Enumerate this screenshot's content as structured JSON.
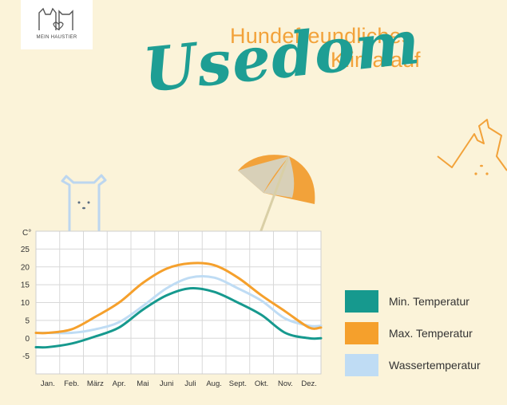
{
  "logo": {
    "text": "MEIN HAUSTIER"
  },
  "header": {
    "line1": "Hundefreundliches",
    "line2": "Klima auf",
    "place": "Usedom"
  },
  "colors": {
    "min": "#16998e",
    "max": "#f5a02c",
    "water": "#bfdcf4",
    "title_teal": "#1e9e94",
    "title_orange": "#f2a23a"
  },
  "chart_data": {
    "type": "line",
    "unit": "C°",
    "categories": [
      "Jan.",
      "Feb.",
      "März",
      "Apr.",
      "Mai",
      "Juni",
      "Juli",
      "Aug.",
      "Sept.",
      "Okt.",
      "Nov.",
      "Dez."
    ],
    "yticks": [
      -5,
      0,
      5,
      10,
      15,
      20,
      25
    ],
    "ylim": [
      -10,
      30
    ],
    "grid": true,
    "legend_position": "right",
    "series": [
      {
        "name": "Min. Temperatur",
        "color": "#16998e",
        "values": [
          -2.5,
          -1.5,
          0.5,
          3,
          8,
          12,
          14,
          13,
          10,
          6.5,
          1.5,
          0
        ]
      },
      {
        "name": "Max. Temperatur",
        "color": "#f5a02c",
        "values": [
          1.5,
          2.5,
          6,
          10,
          15.5,
          19.5,
          21,
          20.5,
          17,
          12,
          7.5,
          3
        ]
      },
      {
        "name": "Wassertemperatur",
        "color": "#bfdcf4",
        "values": [
          1.5,
          1.5,
          2.5,
          4.5,
          9,
          14,
          17,
          17,
          14,
          10.5,
          5.5,
          3.5
        ]
      }
    ]
  }
}
